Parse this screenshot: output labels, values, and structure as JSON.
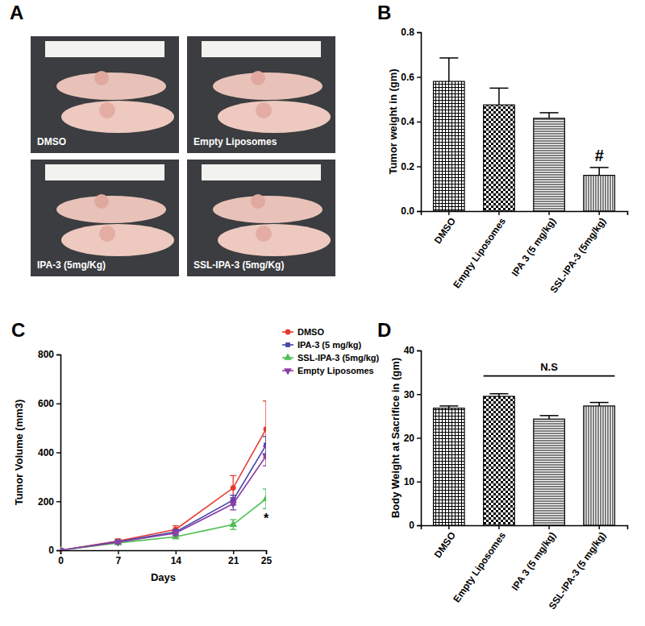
{
  "photo_panel": {
    "panel": "A",
    "captions": [
      "DMSO",
      "Empty Liposomes",
      "IPA-3 (5mg/Kg)",
      "SSL-IPA-3 (5mg/Kg)"
    ]
  },
  "chart_data": [
    {
      "type": "bar",
      "panel": "B",
      "y_label": "Tumor weight in (gm)",
      "categories": [
        "DMSO",
        "Empty Liposomes",
        "IPA 3 (5 mg/kg)",
        "SSL-IPA-3 (5mg/kg)"
      ],
      "values": [
        0.58,
        0.475,
        0.415,
        0.16
      ],
      "errors": [
        0.105,
        0.075,
        0.025,
        0.035
      ],
      "ylim": [
        0,
        0.8
      ],
      "yticks": [
        {
          "value": 0,
          "label": "0.0"
        },
        0.2,
        0.4,
        0.6,
        0.8
      ],
      "annotations": [
        {
          "text": "#",
          "category": "SSL-IPA-3 (5mg/kg)"
        }
      ]
    },
    {
      "type": "line",
      "panel": "C",
      "x_label": "Days",
      "y_label": "Tumor Volume (mm3)",
      "x": [
        0,
        7,
        14,
        21,
        25
      ],
      "xlim": [
        0,
        25
      ],
      "xticks": [
        0,
        7,
        14,
        21,
        25
      ],
      "ylim": [
        0,
        800
      ],
      "yticks": [
        0,
        200,
        400,
        600,
        800
      ],
      "legend": "right",
      "series": [
        {
          "name": "DMSO",
          "color": "#e53a30",
          "marker": "circle",
          "values": [
            0,
            38,
            85,
            255,
            495
          ],
          "errors": [
            0,
            8,
            15,
            50,
            115
          ]
        },
        {
          "name": "IPA-3 (5 mg/kg)",
          "color": "#4646a8",
          "marker": "square",
          "values": [
            0,
            35,
            75,
            205,
            430
          ],
          "errors": [
            0,
            6,
            10,
            20,
            35
          ]
        },
        {
          "name": "SSL-IPA-3 (5mg/kg)",
          "color": "#4fbf52",
          "marker": "triangle",
          "values": [
            0,
            30,
            55,
            105,
            210
          ],
          "errors": [
            0,
            5,
            8,
            20,
            40
          ]
        },
        {
          "name": "Empty Liposomes",
          "color": "#8a3fa8",
          "marker": "triangle-down",
          "values": [
            0,
            33,
            70,
            190,
            385
          ],
          "errors": [
            0,
            6,
            10,
            25,
            40
          ]
        }
      ],
      "annotations": [
        {
          "text": "*",
          "x": 25,
          "series": "SSL-IPA-3 (5mg/kg)"
        }
      ]
    },
    {
      "type": "bar",
      "panel": "D",
      "y_label": "Body Weight at Sacrifice in (gm)",
      "categories": [
        "DMSO",
        "Empty Liposomes",
        "IPA 3 (5 mg/kg)",
        "SSL-IPA-3 (5 mg/kg)"
      ],
      "values": [
        26.8,
        29.5,
        24.3,
        27.3
      ],
      "errors": [
        0.5,
        0.6,
        0.8,
        0.8
      ],
      "ylim": [
        0,
        40
      ],
      "yticks": [
        0,
        10,
        20,
        30,
        40
      ],
      "annotations": [
        {
          "text": "N.S",
          "from": "Empty Liposomes",
          "to": "SSL-IPA-3 (5 mg/kg)"
        }
      ]
    }
  ]
}
